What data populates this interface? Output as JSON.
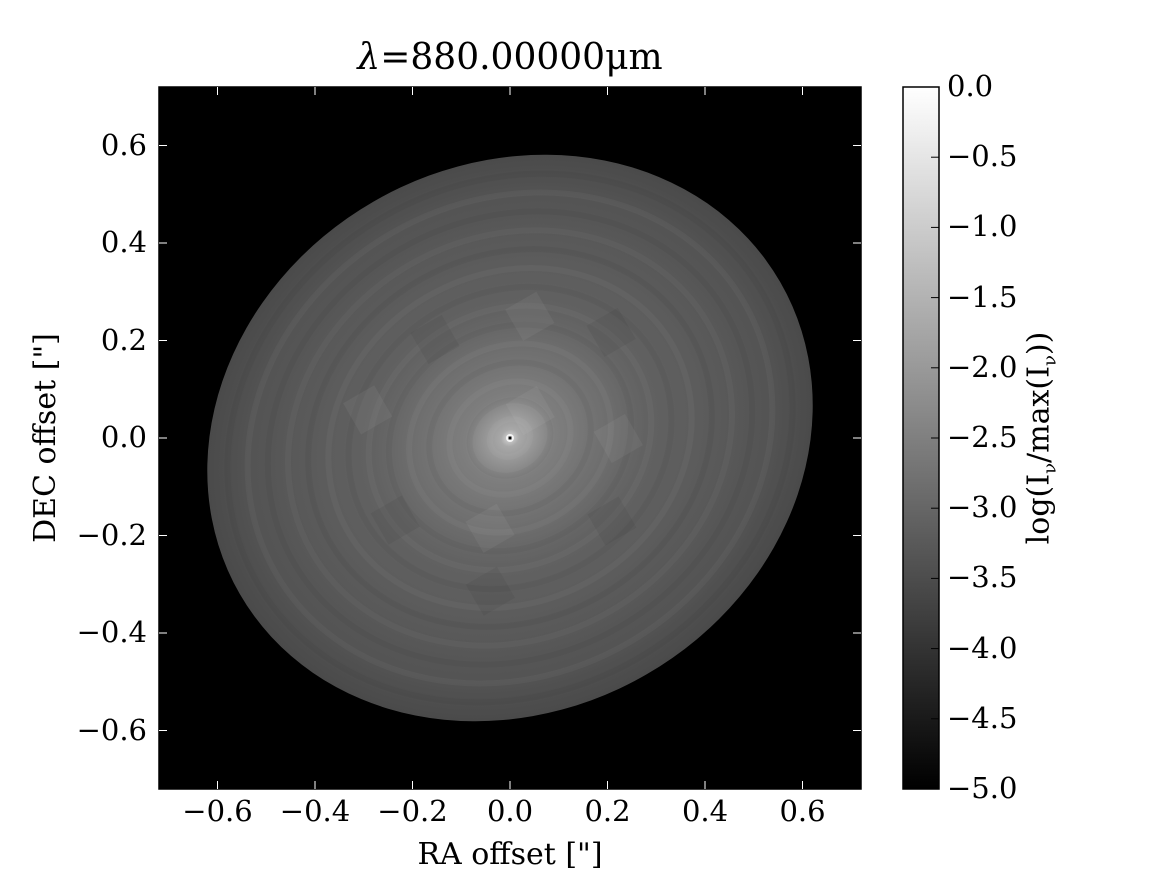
{
  "chart_data": {
    "type": "heatmap",
    "title_prefix": "λ",
    "title_value": "=880.00000",
    "title_unit": "μm",
    "xlabel": "RA offset [\"]",
    "ylabel": "DEC offset [\"]",
    "colorbar_label": "log(Iν/max(Iν))",
    "xlim": [
      -0.72,
      0.72
    ],
    "ylim": [
      -0.72,
      0.72
    ],
    "x_ticks": [
      {
        "value": -0.6,
        "label": "−0.6"
      },
      {
        "value": -0.4,
        "label": "−0.4"
      },
      {
        "value": -0.2,
        "label": "−0.2"
      },
      {
        "value": 0.0,
        "label": "0.0"
      },
      {
        "value": 0.2,
        "label": "0.2"
      },
      {
        "value": 0.4,
        "label": "0.4"
      },
      {
        "value": 0.6,
        "label": "0.6"
      }
    ],
    "y_ticks": [
      {
        "value": 0.6,
        "label": "0.6"
      },
      {
        "value": 0.4,
        "label": "0.4"
      },
      {
        "value": 0.2,
        "label": "0.2"
      },
      {
        "value": 0.0,
        "label": "0.0"
      },
      {
        "value": -0.2,
        "label": "−0.2"
      },
      {
        "value": -0.4,
        "label": "−0.4"
      },
      {
        "value": -0.6,
        "label": "−0.6"
      }
    ],
    "colorbar": {
      "range": [
        -5.0,
        0.0
      ],
      "colormap": "gray",
      "ticks": [
        {
          "value": 0.0,
          "label": "0.0"
        },
        {
          "value": -0.5,
          "label": "−0.5"
        },
        {
          "value": -1.0,
          "label": "−1.0"
        },
        {
          "value": -1.5,
          "label": "−1.5"
        },
        {
          "value": -2.0,
          "label": "−2.0"
        },
        {
          "value": -2.5,
          "label": "−2.5"
        },
        {
          "value": -3.0,
          "label": "−3.0"
        },
        {
          "value": -3.5,
          "label": "−3.5"
        },
        {
          "value": -4.0,
          "label": "−4.0"
        },
        {
          "value": -4.5,
          "label": "−4.5"
        },
        {
          "value": -5.0,
          "label": "−5.0"
        }
      ]
    },
    "image": {
      "description_shape": "inclined disk",
      "center": [
        0.0,
        0.0
      ],
      "semi_major": 0.64,
      "semi_minor": 0.56,
      "position_angle_deg": -30,
      "peak_value": 0.0,
      "disk_edge_value": -3.9,
      "background_value": -5.0
    },
    "colors": {
      "background_image": "#000000",
      "frame": "#000000"
    }
  }
}
